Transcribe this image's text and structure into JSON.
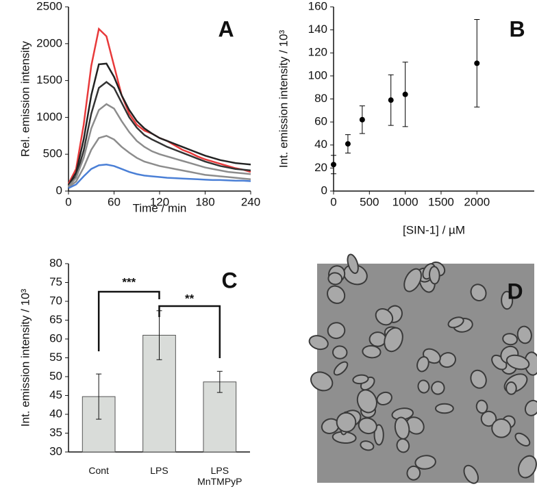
{
  "chart_data": [
    {
      "type": "line",
      "label": "A",
      "xlabel": "Time / min",
      "ylabel": "Rel. emission intensity",
      "x": [
        0,
        10,
        20,
        30,
        40,
        50,
        60,
        70,
        80,
        90,
        100,
        110,
        120,
        130,
        140,
        150,
        160,
        170,
        180,
        190,
        200,
        210,
        220,
        230,
        240
      ],
      "series": [
        {
          "color": "#e8393a",
          "values": [
            100,
            300,
            900,
            1700,
            2200,
            2100,
            1700,
            1300,
            1050,
            900,
            820,
            780,
            720,
            680,
            620,
            560,
            520,
            470,
            430,
            400,
            370,
            340,
            310,
            290,
            260
          ]
        },
        {
          "color": "#222222",
          "values": [
            80,
            250,
            700,
            1300,
            1720,
            1730,
            1550,
            1300,
            1100,
            950,
            850,
            780,
            720,
            680,
            640,
            600,
            560,
            520,
            480,
            450,
            420,
            400,
            380,
            370,
            360
          ]
        },
        {
          "color": "#333333",
          "values": [
            70,
            200,
            550,
            1050,
            1400,
            1480,
            1400,
            1200,
            1000,
            860,
            760,
            700,
            650,
            600,
            560,
            520,
            480,
            440,
            400,
            370,
            340,
            320,
            300,
            290,
            280
          ]
        },
        {
          "color": "#8c8c8c",
          "values": [
            60,
            180,
            450,
            850,
            1100,
            1180,
            1120,
            950,
            800,
            680,
            600,
            540,
            500,
            470,
            440,
            410,
            380,
            350,
            320,
            300,
            280,
            260,
            250,
            240,
            230
          ]
        },
        {
          "color": "#8c8c8c",
          "values": [
            50,
            130,
            320,
            560,
            720,
            750,
            700,
            600,
            520,
            450,
            400,
            370,
            340,
            320,
            300,
            280,
            260,
            240,
            220,
            210,
            200,
            190,
            180,
            170,
            160
          ]
        },
        {
          "color": "#4a7fd6",
          "values": [
            40,
            90,
            200,
            300,
            350,
            360,
            340,
            300,
            260,
            230,
            210,
            200,
            190,
            180,
            175,
            170,
            165,
            160,
            155,
            150,
            150,
            145,
            140,
            140,
            135
          ]
        }
      ],
      "xlim": [
        0,
        240
      ],
      "xticks": [
        0,
        60,
        120,
        180,
        240
      ],
      "ylim": [
        0,
        2500
      ],
      "yticks": [
        0,
        500,
        1000,
        1500,
        2000,
        2500
      ]
    },
    {
      "type": "scatter",
      "label": "B",
      "xlabel": "[SIN-1] / µM",
      "ylabel": "Int. emission intensity / 10³",
      "x": [
        0,
        200,
        400,
        800,
        1000,
        2000
      ],
      "values": [
        23,
        41,
        62,
        79,
        84,
        111
      ],
      "errors": [
        8,
        8,
        12,
        22,
        28,
        38
      ],
      "color": "#000000",
      "xlim": [
        0,
        2800
      ],
      "xticks": [
        0,
        500,
        1000,
        1500,
        2000
      ],
      "ylim": [
        0,
        160
      ],
      "yticks": [
        0,
        20,
        40,
        60,
        80,
        100,
        120,
        140,
        160
      ]
    },
    {
      "type": "bar",
      "label": "C",
      "ylabel": "Int. emission intensity / 10³",
      "categories": [
        "Cont",
        "LPS",
        "LPS MnTMPyP"
      ],
      "values": [
        44.7,
        61,
        48.6
      ],
      "errors": [
        6,
        6.5,
        2.8
      ],
      "color": "#d9dcd9",
      "annotations": [
        "***",
        "**"
      ],
      "ylim": [
        30,
        80
      ],
      "yticks": [
        30,
        35,
        40,
        45,
        50,
        55,
        60,
        65,
        70,
        75,
        80
      ]
    },
    {
      "type": "image",
      "label": "D"
    }
  ]
}
